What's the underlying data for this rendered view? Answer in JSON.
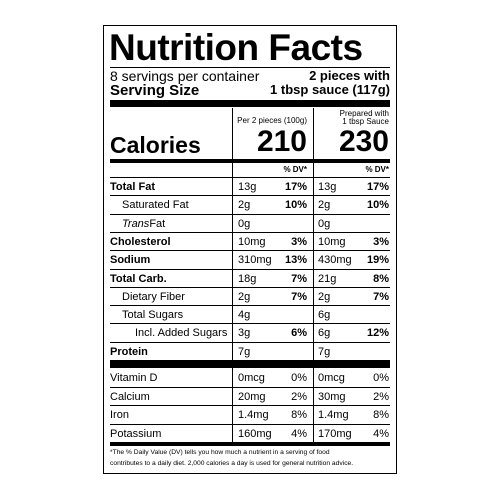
{
  "title": "Nutrition Facts",
  "servings": "8 servings per container",
  "serving_size_label": "Serving Size",
  "serving_size_value": [
    "2 pieces with",
    "1 tbsp sauce (117g)"
  ],
  "column_headers": [
    [
      "Per 2 pieces (100g)"
    ],
    [
      "Prepared with",
      "1 tbsp Sauce"
    ]
  ],
  "calories_label": "Calories",
  "calories": [
    "210",
    "230"
  ],
  "dv_header": [
    "% DV*",
    "% DV*"
  ],
  "nutrients": [
    {
      "name": "Total Fat",
      "bold": true,
      "indent": 0,
      "amount_1": "13g",
      "dv_1": "17%",
      "amount_2": "13g",
      "dv_2": "17%"
    },
    {
      "name": "Saturated Fat",
      "bold": false,
      "indent": 1,
      "amount_1": "2g",
      "dv_1": "10%",
      "amount_2": "2g",
      "dv_2": "10%"
    },
    {
      "name_italic": "Trans",
      "name": " Fat",
      "bold": false,
      "indent": 1,
      "amount_1": "0g",
      "amount_2": "0g"
    },
    {
      "name": "Cholesterol",
      "bold": true,
      "indent": 0,
      "amount_1": "10mg",
      "dv_1": "3%",
      "amount_2": "10mg",
      "dv_2": "3%"
    },
    {
      "name": "Sodium",
      "bold": true,
      "indent": 0,
      "amount_1": "310mg",
      "dv_1": "13%",
      "amount_2": "430mg",
      "dv_2": "19%"
    },
    {
      "name": "Total Carb.",
      "bold": true,
      "indent": 0,
      "amount_1": "18g",
      "dv_1": "7%",
      "amount_2": "21g",
      "dv_2": "8%"
    },
    {
      "name": "Dietary Fiber",
      "bold": false,
      "indent": 1,
      "amount_1": "2g",
      "dv_1": "7%",
      "amount_2": "2g",
      "dv_2": "7%"
    },
    {
      "name": "Total Sugars",
      "bold": false,
      "indent": 1,
      "amount_1": "4g",
      "amount_2": "6g"
    },
    {
      "name": "Incl. Added Sugars",
      "bold": false,
      "indent": 2,
      "amount_1": "3g",
      "dv_1": "6%",
      "amount_2": "6g",
      "dv_2": "12%"
    },
    {
      "name": "Protein",
      "bold": true,
      "indent": 0,
      "amount_1": "7g",
      "amount_2": "7g"
    }
  ],
  "vitamins": [
    {
      "name": "Vitamin D",
      "amount_1": "0mcg",
      "dv_1": "0%",
      "amount_2": "0mcg",
      "dv_2": "0%"
    },
    {
      "name": "Calcium",
      "amount_1": "20mg",
      "dv_1": "2%",
      "amount_2": "30mg",
      "dv_2": "2%"
    },
    {
      "name": "Iron",
      "amount_1": "1.4mg",
      "dv_1": "8%",
      "amount_2": "1.4mg",
      "dv_2": "8%"
    },
    {
      "name": "Potassium",
      "amount_1": "160mg",
      "dv_1": "4%",
      "amount_2": "170mg",
      "dv_2": "4%"
    }
  ],
  "footnote": [
    "*The % Daily Value (DV) tells you how much a nutrient in a serving of food",
    "contributes to a daily diet. 2,000 calories a day is used for general nutrition advice."
  ]
}
